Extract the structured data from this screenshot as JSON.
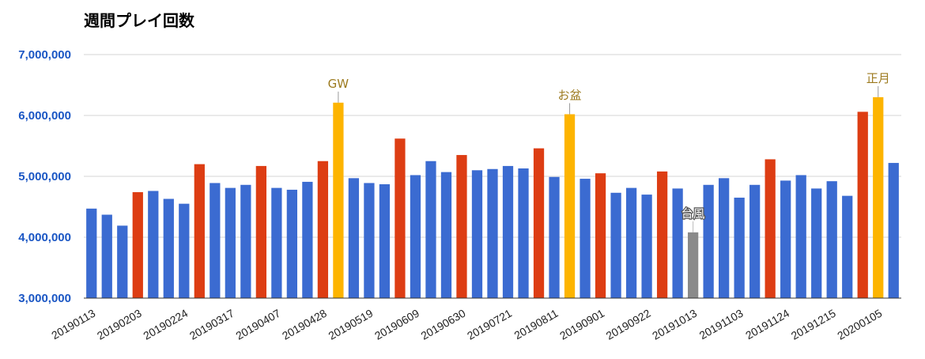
{
  "chart_data": {
    "type": "bar",
    "title": "週間プレイ回数",
    "xlabel": "",
    "ylabel": "",
    "ylim": [
      3000000,
      7000000
    ],
    "y_ticks": [
      "3,000,000",
      "4,000,000",
      "5,000,000",
      "6,000,000",
      "7,000,000"
    ],
    "y_tick_values": [
      3000000,
      4000000,
      5000000,
      6000000,
      7000000
    ],
    "grid": true,
    "legend": "none",
    "colors": {
      "normal": "#3b6bd1",
      "weekend": "#dd3d13",
      "holiday": "#fdb400",
      "typhoon": "#8a8a8a",
      "axis_label": "#1a56c4",
      "gridline": "#d6d6d6",
      "annotation": "#9c7a1e",
      "annotation_typhoon": "#ffffff"
    },
    "x_tick_labels": [
      "20190113",
      "20190203",
      "20190224",
      "20190317",
      "20190407",
      "20190428",
      "20190519",
      "20190609",
      "20190630",
      "20190721",
      "20190811",
      "20190901",
      "20190922",
      "20191013",
      "20191103",
      "20191124",
      "20191215",
      "20200105"
    ],
    "x_tick_every": 3,
    "values": [
      4470000,
      4370000,
      4190000,
      4740000,
      4760000,
      4630000,
      4550000,
      5200000,
      4890000,
      4810000,
      4860000,
      5170000,
      4810000,
      4780000,
      4910000,
      5250000,
      6210000,
      4970000,
      4890000,
      4870000,
      5620000,
      5020000,
      5250000,
      5070000,
      5350000,
      5100000,
      5120000,
      5170000,
      5130000,
      5460000,
      4990000,
      6020000,
      4960000,
      5050000,
      4730000,
      4810000,
      4700000,
      5080000,
      4800000,
      4080000,
      4860000,
      4970000,
      4650000,
      4860000,
      5280000,
      4930000,
      5020000,
      4800000,
      4920000,
      4680000,
      6060000,
      6300000,
      5220000
    ],
    "bar_types": [
      "normal",
      "normal",
      "normal",
      "weekend",
      "normal",
      "normal",
      "normal",
      "weekend",
      "normal",
      "normal",
      "normal",
      "weekend",
      "normal",
      "normal",
      "normal",
      "weekend",
      "holiday",
      "normal",
      "normal",
      "normal",
      "weekend",
      "normal",
      "normal",
      "normal",
      "weekend",
      "normal",
      "normal",
      "normal",
      "normal",
      "weekend",
      "normal",
      "holiday",
      "normal",
      "weekend",
      "normal",
      "normal",
      "normal",
      "weekend",
      "normal",
      "typhoon",
      "normal",
      "normal",
      "normal",
      "normal",
      "weekend",
      "normal",
      "normal",
      "normal",
      "normal",
      "normal",
      "weekend",
      "holiday",
      "normal"
    ],
    "annotations": [
      {
        "index": 16,
        "text": "GW"
      },
      {
        "index": 31,
        "text": "お盆"
      },
      {
        "index": 39,
        "text": "台風"
      },
      {
        "index": 51,
        "text": "正月"
      }
    ]
  }
}
